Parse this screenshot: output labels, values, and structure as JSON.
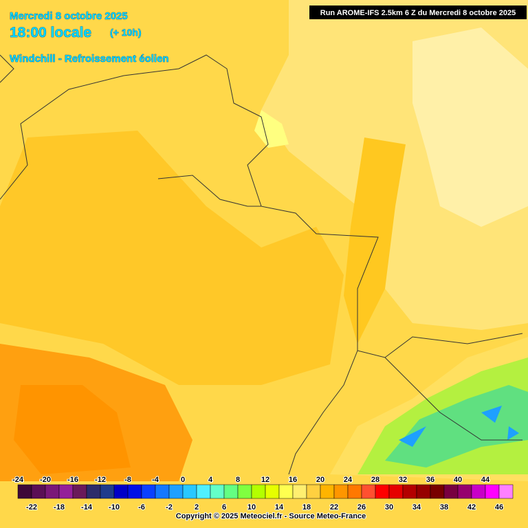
{
  "header": {
    "date": "Mercredi 8 octobre 2025",
    "time": "18:00 locale",
    "lead": "(+ 10h)",
    "parameter": "Windchill - Refroissement éolien",
    "run": "Run AROME-IFS 2.5km 6 Z du Mercredi 8 octobre 2025"
  },
  "legend": {
    "values": [
      -24,
      -22,
      -20,
      -18,
      -16,
      -14,
      -12,
      -10,
      -8,
      -6,
      -4,
      -2,
      0,
      2,
      4,
      6,
      8,
      10,
      12,
      14,
      16,
      18,
      20,
      22,
      24,
      26,
      28,
      30,
      32,
      34,
      36,
      38,
      40,
      42,
      44,
      46
    ],
    "colors": [
      "#3e0838",
      "#5a0f55",
      "#7a1878",
      "#94209a",
      "#6a1a5a",
      "#2c2c6a",
      "#1e3c8c",
      "#0000c8",
      "#0010e6",
      "#0a40ff",
      "#1478ff",
      "#1ea0ff",
      "#28c8ff",
      "#50f0ff",
      "#64ffc8",
      "#64ff82",
      "#80ff40",
      "#b4ff00",
      "#e6ff00",
      "#ffff50",
      "#ffef70",
      "#ffd040",
      "#ffb400",
      "#ff9600",
      "#ff7800",
      "#ff5030",
      "#ff0000",
      "#e60000",
      "#b40000",
      "#960000",
      "#780000",
      "#780040",
      "#96006e",
      "#c800c8",
      "#ff00ff",
      "#ff80ff"
    ]
  },
  "footer": {
    "copyright": "Copyright © 2025 Meteociel.fr - Source Meteo-France"
  }
}
